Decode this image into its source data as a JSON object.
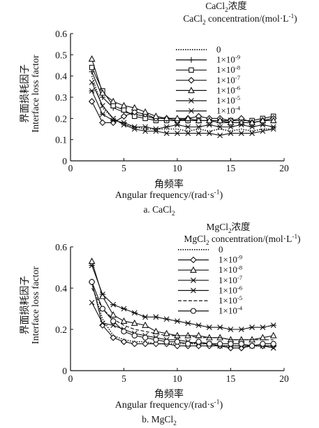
{
  "chart_data": [
    {
      "type": "line",
      "caption": "a. CaCl",
      "caption_sub": "2",
      "legend_title_cn": "CaCl",
      "legend_title_cn_sub": "2",
      "legend_title_cn_tail": "浓度",
      "legend_title_en": "CaCl",
      "legend_title_en_sub": "2",
      "legend_title_en_tail": " concentration/(mol·L",
      "legend_title_en_sup": "-1",
      "legend_title_en_end": ")",
      "xlabel_cn": "角频率",
      "xlabel_en": "Angular frequency/(rad·s",
      "xlabel_en_sup": "-1",
      "xlabel_en_end": ")",
      "ylabel_cn": "界面损耗因子",
      "ylabel_en": "Interface loss factor",
      "xlim": [
        0,
        20
      ],
      "ylim": [
        0,
        0.6
      ],
      "xticks": [
        "0",
        "5",
        "10",
        "15",
        "20"
      ],
      "yticks": [
        "0",
        "0.1",
        "0.2",
        "0.3",
        "0.4",
        "0.5",
        "0.6"
      ],
      "legend_placement": "top-right",
      "x": [
        2,
        3,
        4,
        5,
        6,
        7,
        8,
        9,
        10,
        11,
        12,
        13,
        14,
        15,
        16,
        17,
        18,
        19
      ],
      "series": [
        {
          "name": "0",
          "base": "",
          "exp": "",
          "marker": "dot",
          "values": [
            0.4,
            0.25,
            0.2,
            0.17,
            0.16,
            0.15,
            0.15,
            0.15,
            0.15,
            0.14,
            0.15,
            0.14,
            0.15,
            0.14,
            0.15,
            0.14,
            0.15,
            0.15
          ]
        },
        {
          "name": "",
          "base": "1×10",
          "exp": "-9",
          "marker": "plus",
          "values": [
            0.42,
            0.3,
            0.25,
            0.23,
            0.22,
            0.21,
            0.2,
            0.2,
            0.2,
            0.19,
            0.19,
            0.19,
            0.18,
            0.18,
            0.18,
            0.18,
            0.19,
            0.2
          ]
        },
        {
          "name": "",
          "base": "1×10",
          "exp": "-8",
          "marker": "square",
          "values": [
            0.44,
            0.33,
            0.26,
            0.24,
            0.21,
            0.2,
            0.19,
            0.19,
            0.19,
            0.19,
            0.19,
            0.19,
            0.19,
            0.19,
            0.19,
            0.19,
            0.2,
            0.21
          ]
        },
        {
          "name": "",
          "base": "1×10",
          "exp": "-7",
          "marker": "diamond",
          "values": [
            0.28,
            0.18,
            0.18,
            0.21,
            0.23,
            0.22,
            0.2,
            0.2,
            0.19,
            0.2,
            0.21,
            0.2,
            0.2,
            0.19,
            0.2,
            0.18,
            0.19,
            0.2
          ]
        },
        {
          "name": "",
          "base": "1×10",
          "exp": "-6",
          "marker": "triangle",
          "values": [
            0.48,
            0.32,
            0.28,
            0.26,
            0.25,
            0.23,
            0.21,
            0.2,
            0.2,
            0.2,
            0.19,
            0.19,
            0.19,
            0.18,
            0.18,
            0.18,
            0.19,
            0.19
          ]
        },
        {
          "name": "",
          "base": "1×10",
          "exp": "-5",
          "marker": "x",
          "values": [
            0.37,
            0.26,
            0.2,
            0.17,
            0.15,
            0.14,
            0.14,
            0.13,
            0.13,
            0.13,
            0.13,
            0.13,
            0.12,
            0.13,
            0.13,
            0.13,
            0.14,
            0.15
          ]
        },
        {
          "name": "",
          "base": "1×10",
          "exp": "-4",
          "marker": "asterisk",
          "values": [
            0.33,
            0.22,
            0.19,
            0.18,
            0.16,
            0.16,
            0.15,
            0.16,
            0.17,
            0.16,
            0.16,
            0.17,
            0.16,
            0.16,
            0.17,
            0.16,
            0.17,
            0.16
          ]
        }
      ]
    },
    {
      "type": "line",
      "caption": "b. MgCl",
      "caption_sub": "2",
      "legend_title_cn": "MgCl",
      "legend_title_cn_sub": "2",
      "legend_title_cn_tail": "浓度",
      "legend_title_en": "MgCl",
      "legend_title_en_sub": "2",
      "legend_title_en_tail": " concentration/(mol·L",
      "legend_title_en_sup": "-1",
      "legend_title_en_end": ")",
      "xlabel_cn": "角频率",
      "xlabel_en": "Angular frequency/(rad·s",
      "xlabel_en_sup": "-1",
      "xlabel_en_end": ")",
      "ylabel_cn": "界面损耗因子",
      "ylabel_en": "Interface loss factor",
      "xlim": [
        0,
        20
      ],
      "ylim": [
        0,
        0.6
      ],
      "xticks": [
        "0",
        "5",
        "10",
        "15",
        "20"
      ],
      "yticks": [
        "0",
        "0.2",
        "0.4",
        "0.6"
      ],
      "legend_placement": "top-right",
      "x": [
        2,
        3,
        4,
        5,
        6,
        7,
        8,
        9,
        10,
        11,
        12,
        13,
        14,
        15,
        16,
        17,
        18,
        19
      ],
      "series": [
        {
          "name": "0",
          "base": "",
          "exp": "",
          "marker": "dot",
          "values": [
            0.42,
            0.25,
            0.17,
            0.15,
            0.14,
            0.14,
            0.13,
            0.13,
            0.13,
            0.13,
            0.13,
            0.13,
            0.12,
            0.12,
            0.12,
            0.12,
            0.12,
            0.12
          ]
        },
        {
          "name": "",
          "base": "1×10",
          "exp": "-9",
          "marker": "diamond",
          "values": [
            0.43,
            0.22,
            0.16,
            0.14,
            0.13,
            0.13,
            0.13,
            0.13,
            0.12,
            0.12,
            0.12,
            0.12,
            0.12,
            0.11,
            0.11,
            0.12,
            0.12,
            0.12
          ]
        },
        {
          "name": "",
          "base": "1×10",
          "exp": "-8",
          "marker": "triangle",
          "values": [
            0.53,
            0.36,
            0.27,
            0.24,
            0.23,
            0.22,
            0.19,
            0.18,
            0.17,
            0.17,
            0.17,
            0.16,
            0.16,
            0.15,
            0.15,
            0.15,
            0.16,
            0.17
          ]
        },
        {
          "name": "",
          "base": "1×10",
          "exp": "-7",
          "marker": "x",
          "values": [
            0.33,
            0.23,
            0.22,
            0.2,
            0.18,
            0.17,
            0.16,
            0.15,
            0.15,
            0.14,
            0.13,
            0.13,
            0.12,
            0.12,
            0.12,
            0.12,
            0.12,
            0.11
          ]
        },
        {
          "name": "",
          "base": "1×10",
          "exp": "-6",
          "marker": "asterisk",
          "values": [
            0.51,
            0.37,
            0.32,
            0.3,
            0.28,
            0.26,
            0.26,
            0.25,
            0.24,
            0.23,
            0.22,
            0.21,
            0.21,
            0.2,
            0.2,
            0.21,
            0.21,
            0.22
          ]
        },
        {
          "name": "",
          "base": "1×10",
          "exp": "-5",
          "marker": "dash",
          "values": [
            0.4,
            0.3,
            0.25,
            0.22,
            0.2,
            0.19,
            0.18,
            0.17,
            0.17,
            0.17,
            0.16,
            0.16,
            0.16,
            0.15,
            0.15,
            0.15,
            0.15,
            0.15
          ]
        },
        {
          "name": "",
          "base": "1×10",
          "exp": "-4",
          "marker": "circle",
          "values": [
            0.43,
            0.3,
            0.24,
            0.19,
            0.17,
            0.16,
            0.15,
            0.14,
            0.14,
            0.13,
            0.14,
            0.13,
            0.13,
            0.13,
            0.13,
            0.12,
            0.13,
            0.13
          ]
        }
      ]
    }
  ]
}
